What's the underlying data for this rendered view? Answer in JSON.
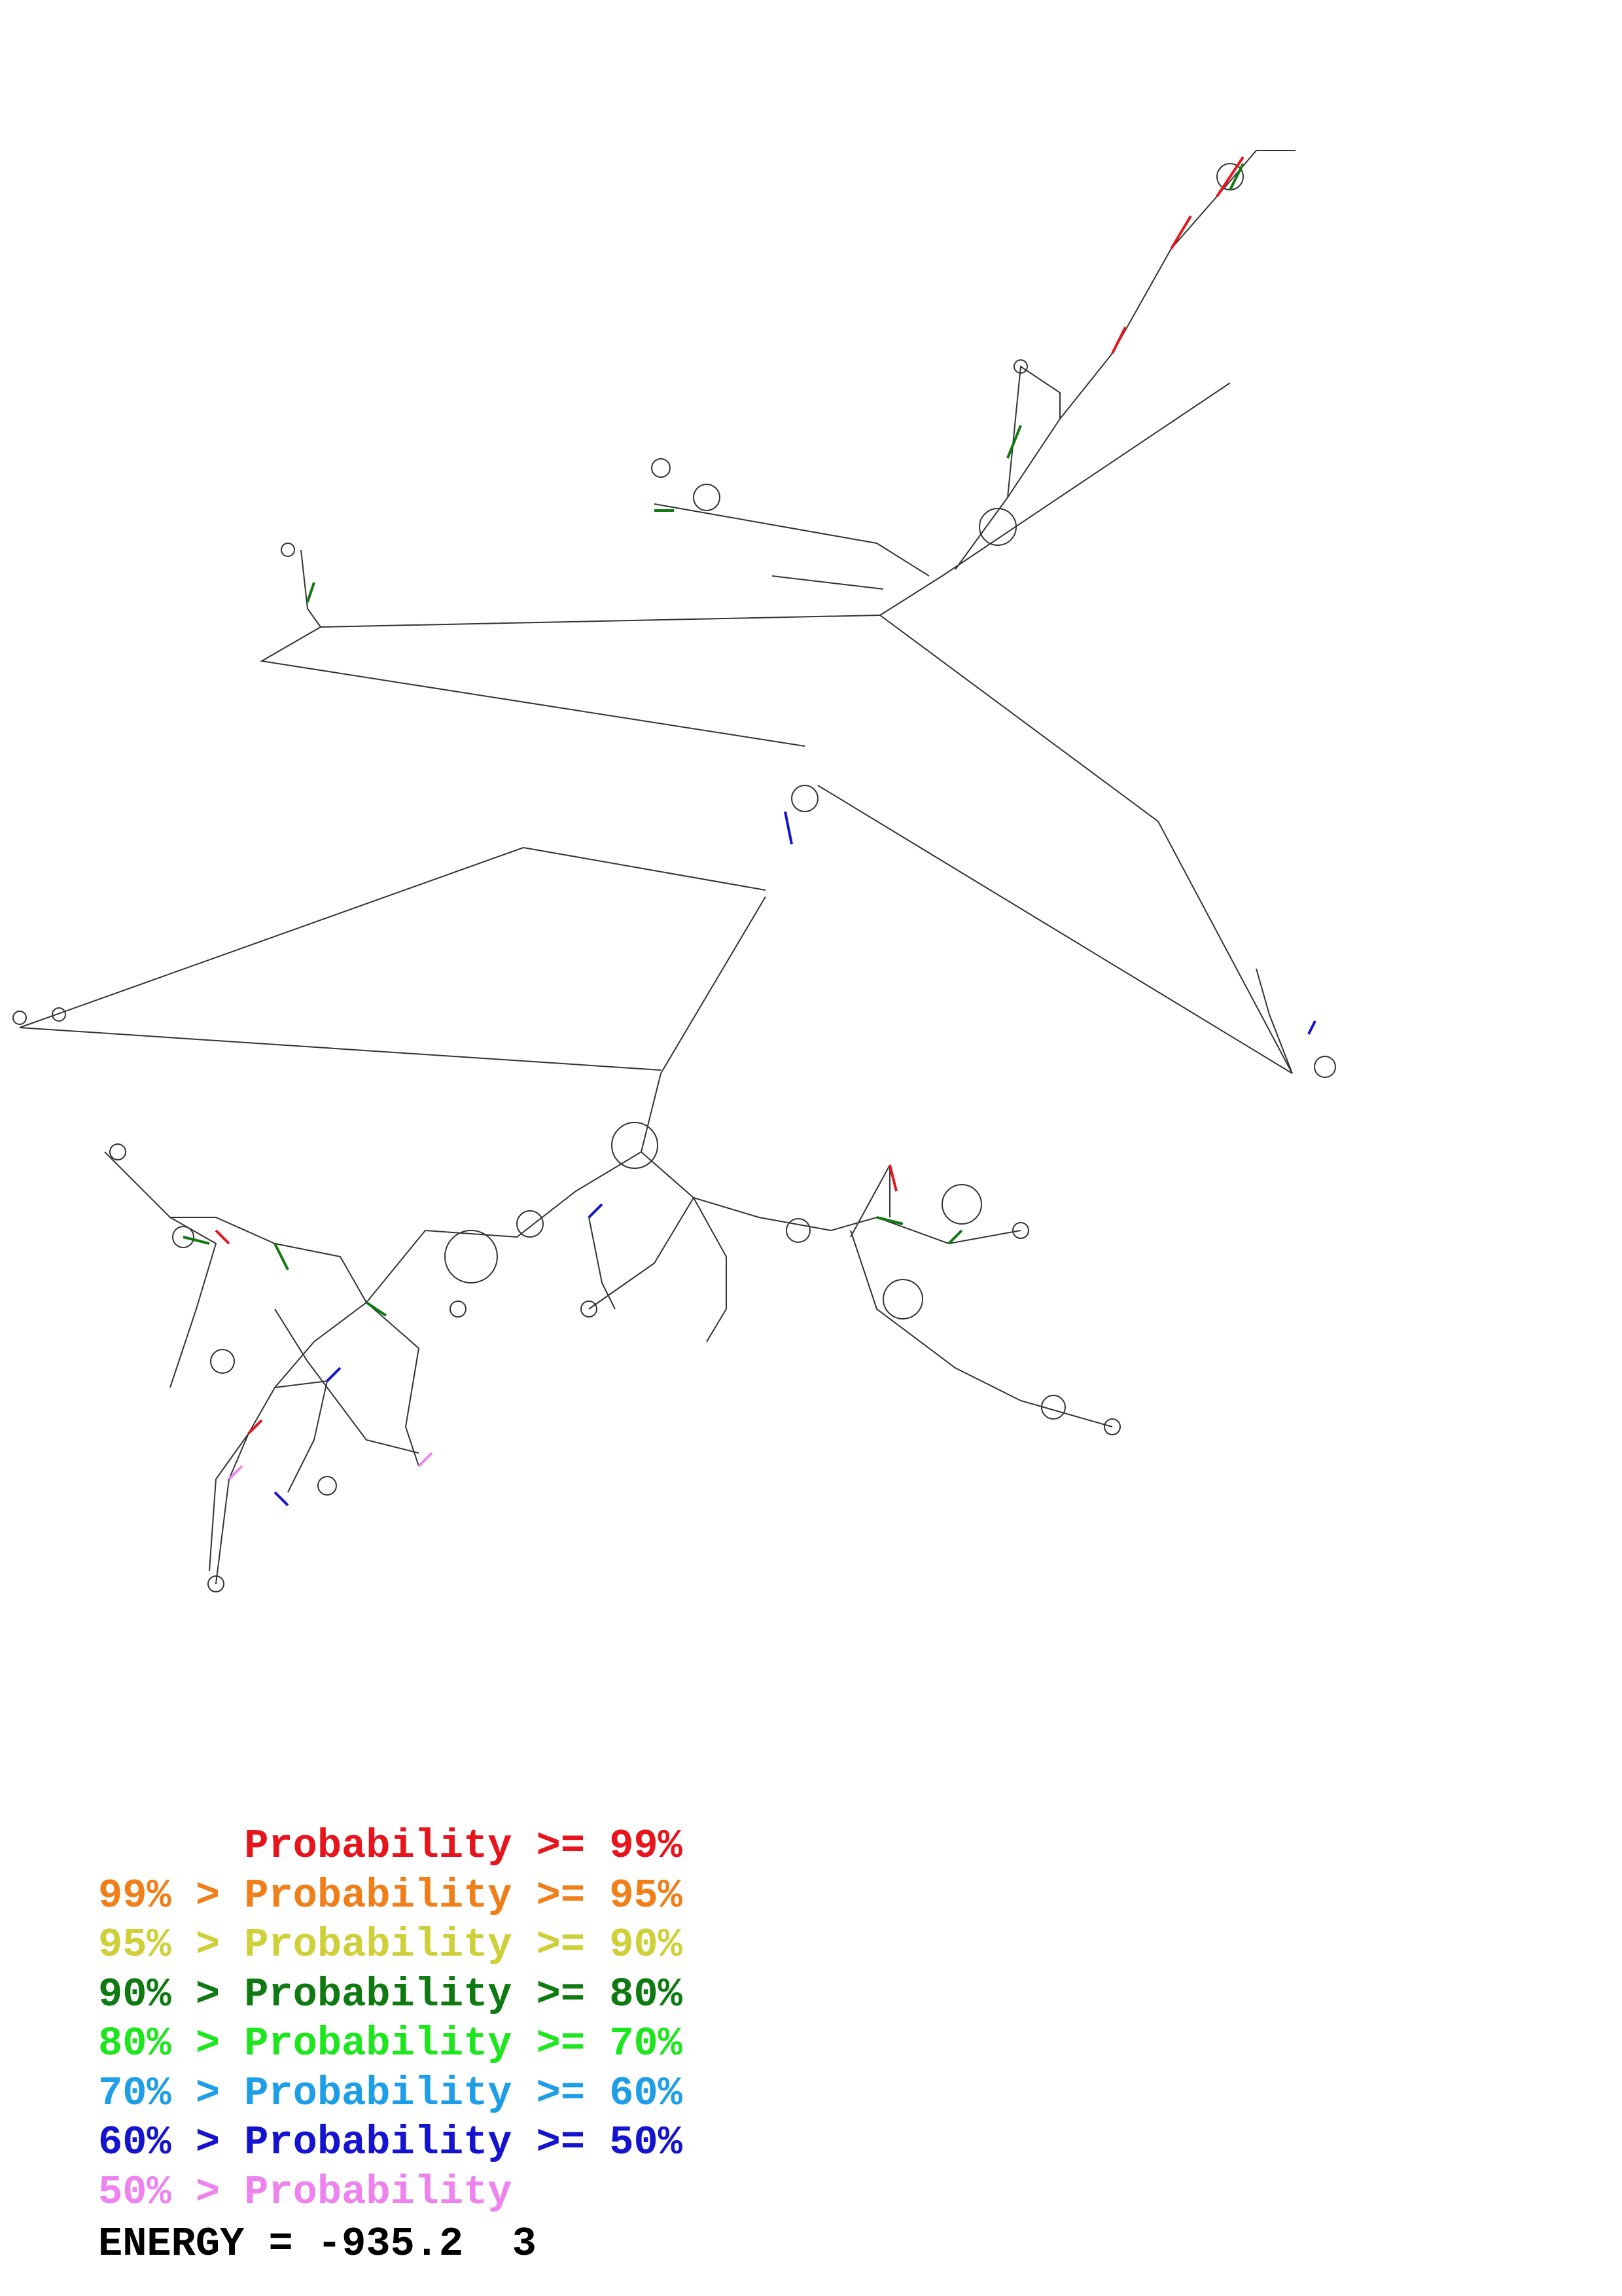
{
  "legend": {
    "rows": [
      {
        "low_label": "",
        "sep": "",
        "mid": "Probability",
        "op": ">=",
        "high_label": "99%",
        "color": "#e8141c"
      },
      {
        "low_label": "99%",
        "sep": ">",
        "mid": "Probability",
        "op": ">=",
        "high_label": "95%",
        "color": "#f07f1a"
      },
      {
        "low_label": "95%",
        "sep": ">",
        "mid": "Probability",
        "op": ">=",
        "high_label": "90%",
        "color": "#cfcf3a"
      },
      {
        "low_label": "90%",
        "sep": ">",
        "mid": "Probability",
        "op": ">=",
        "high_label": "80%",
        "color": "#0f7a12"
      },
      {
        "low_label": "80%",
        "sep": ">",
        "mid": "Probability",
        "op": ">=",
        "high_label": "70%",
        "color": "#1ee61e"
      },
      {
        "low_label": "70%",
        "sep": ">",
        "mid": "Probability",
        "op": ">=",
        "high_label": "60%",
        "color": "#1e9ee6"
      },
      {
        "low_label": "60%",
        "sep": ">",
        "mid": "Probability",
        "op": ">=",
        "high_label": "50%",
        "color": "#1414cf"
      },
      {
        "low_label": "50%",
        "sep": ">",
        "mid": "Probability",
        "op": "",
        "high_label": "",
        "color": "#ee82ee"
      }
    ]
  },
  "energy": {
    "label": "ENERGY",
    "equals": "=",
    "value": "-935.2",
    "index": "3"
  },
  "colors": {
    "backbone": "#333333",
    "pair_red": "#e8141c",
    "pair_green": "#0f7a12",
    "pair_blue": "#1414cf",
    "pair_pink": "#ee82ee"
  }
}
